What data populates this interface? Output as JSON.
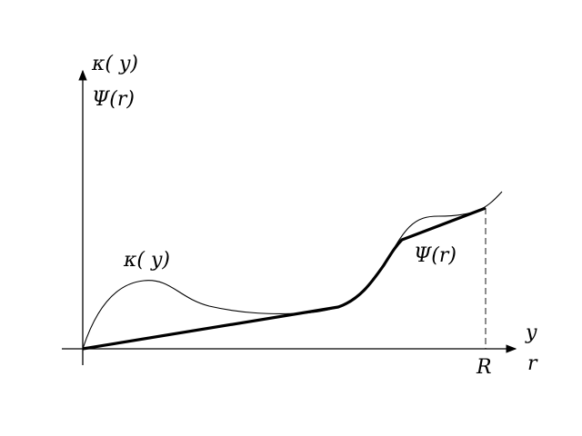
{
  "figure": {
    "y_axis_label_top": "κ( y)",
    "y_axis_label_bottom": "Ψ(r)",
    "x_axis_label_top": "y",
    "x_axis_label_bottom": "r",
    "x_axis_tick_label": "R",
    "curve_kappa_label": "κ( y)",
    "curve_psi_label": "Ψ(r)"
  },
  "colors": {
    "ink": "#000000",
    "background": "#ffffff"
  }
}
